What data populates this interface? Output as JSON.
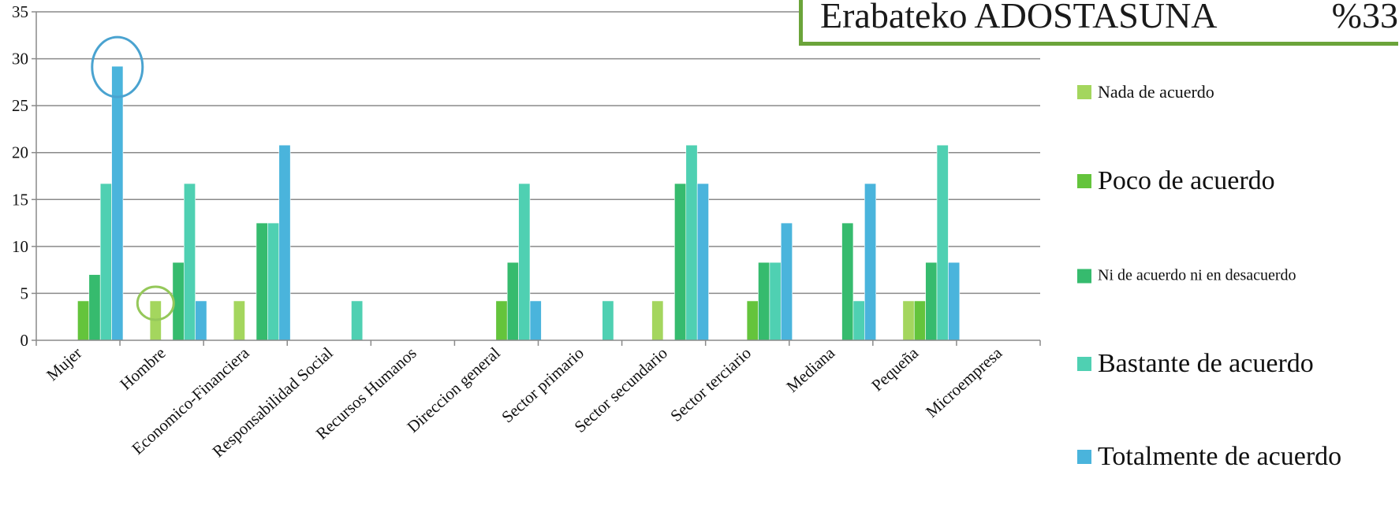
{
  "chart_data": {
    "type": "bar",
    "title": "Erabateko ADOSTASUNA",
    "title_value": "%33",
    "xlabel": "",
    "ylabel": "",
    "ylim": [
      0,
      35
    ],
    "yticks": [
      "0",
      "5",
      "10",
      "15",
      "20",
      "25",
      "30",
      "35"
    ],
    "grid": true,
    "legend_position": "right",
    "categories": [
      "Mujer",
      "Hombre",
      "Economico-Financiera",
      "Responsabilidad Social",
      "Recursos Humanos",
      "Direccion general",
      "Sector primario",
      "Sector secundario",
      "Sector terciario",
      "Mediana",
      "Pequeña",
      "Microempresa"
    ],
    "series": [
      {
        "name": "Nada de acuerdo",
        "color": "#a4d65e",
        "values": [
          0,
          4.2,
          4.2,
          0,
          0,
          0,
          0,
          4.2,
          0,
          0,
          4.2,
          0
        ]
      },
      {
        "name": "Poco de acuerdo",
        "color": "#64c43c",
        "values": [
          4.2,
          0,
          0,
          0,
          0,
          4.2,
          0,
          0,
          4.2,
          0,
          4.2,
          0
        ]
      },
      {
        "name": "Ni de acuerdo ni en desacuerdo",
        "color": "#36bb6e",
        "values": [
          7,
          8.3,
          12.5,
          0,
          0,
          8.3,
          0,
          16.7,
          8.3,
          12.5,
          8.3,
          0
        ]
      },
      {
        "name": "Bastante de acuerdo",
        "color": "#4fd0b2",
        "values": [
          16.7,
          16.7,
          12.5,
          4.2,
          0,
          16.7,
          4.2,
          20.8,
          8.3,
          4.2,
          20.8,
          0
        ]
      },
      {
        "name": "Totalmente de acuerdo",
        "color": "#4ab4dc",
        "values": [
          29.2,
          4.2,
          20.8,
          0,
          0,
          4.2,
          0,
          16.7,
          12.5,
          16.7,
          8.3,
          0
        ]
      }
    ],
    "annotations": [
      {
        "type": "circle",
        "category": "Mujer",
        "series": "Totalmente de acuerdo",
        "color": "#4aa3d0"
      },
      {
        "type": "circle",
        "category": "Hombre",
        "series": "Nada de acuerdo",
        "color": "#95c85a"
      }
    ]
  }
}
